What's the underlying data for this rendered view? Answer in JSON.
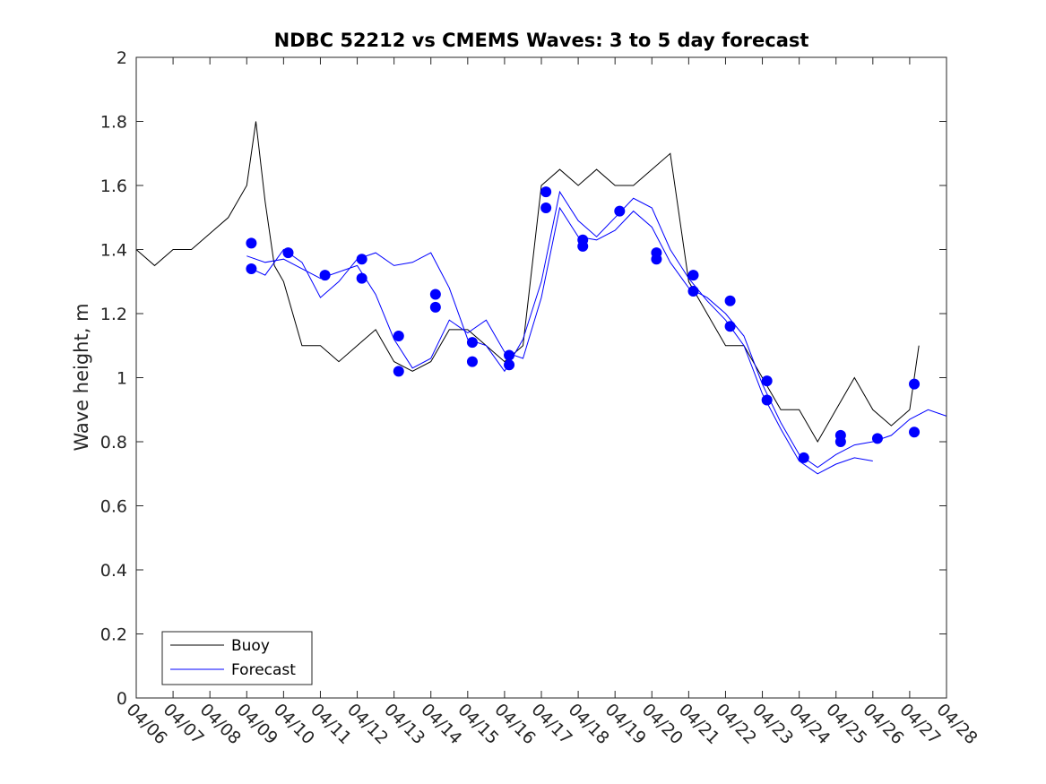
{
  "chart_data": {
    "type": "line",
    "title": "NDBC 52212 vs CMEMS Waves: 3 to 5 day forecast",
    "xlabel": "",
    "ylabel": "Wave height, m",
    "xlim": [
      "04/06",
      "04/28"
    ],
    "ylim": [
      0,
      2
    ],
    "x_tick_labels": [
      "04/06",
      "04/07",
      "04/08",
      "04/09",
      "04/10",
      "04/11",
      "04/12",
      "04/13",
      "04/14",
      "04/15",
      "04/16",
      "04/17",
      "04/18",
      "04/19",
      "04/20",
      "04/21",
      "04/22",
      "04/23",
      "04/24",
      "04/25",
      "04/26",
      "04/27",
      "04/28"
    ],
    "y_tick_labels": [
      "0",
      "0.2",
      "0.4",
      "0.6",
      "0.8",
      "1",
      "1.2",
      "1.4",
      "1.6",
      "1.8",
      "2"
    ],
    "grid": false,
    "legend": {
      "position": "bottom-left",
      "entries": [
        "Buoy",
        "Forecast"
      ]
    },
    "colors": {
      "buoy": "#000000",
      "forecast": "#0000ff",
      "axes": "#262626"
    },
    "series": [
      {
        "name": "Buoy",
        "x": [
          "04/06",
          "04/06 12:00",
          "04/07",
          "04/07 12:00",
          "04/08",
          "04/08 12:00",
          "04/09",
          "04/09 06:00",
          "04/09 12:00",
          "04/09 18:00",
          "04/10",
          "04/10 12:00",
          "04/11",
          "04/11 12:00",
          "04/12",
          "04/12 12:00",
          "04/13",
          "04/13 12:00",
          "04/14",
          "04/14 12:00",
          "04/15",
          "04/15 12:00",
          "04/16",
          "04/16 12:00",
          "04/17",
          "04/17 12:00",
          "04/18",
          "04/18 12:00",
          "04/19",
          "04/19 12:00",
          "04/20",
          "04/20 12:00",
          "04/21",
          "04/21 12:00",
          "04/22",
          "04/22 12:00",
          "04/23",
          "04/23 12:00",
          "04/24",
          "04/24 12:00",
          "04/25",
          "04/25 12:00",
          "04/26",
          "04/26 12:00",
          "04/27",
          "04/27 06:00"
        ],
        "values": [
          1.4,
          1.35,
          1.4,
          1.4,
          1.45,
          1.5,
          1.6,
          1.8,
          1.55,
          1.35,
          1.3,
          1.1,
          1.1,
          1.05,
          1.1,
          1.15,
          1.05,
          1.02,
          1.05,
          1.15,
          1.15,
          1.1,
          1.05,
          1.1,
          1.6,
          1.65,
          1.6,
          1.65,
          1.6,
          1.6,
          1.65,
          1.7,
          1.3,
          1.2,
          1.1,
          1.1,
          1.0,
          0.9,
          0.9,
          0.8,
          0.9,
          1.0,
          0.9,
          0.85,
          0.9,
          1.1
        ]
      },
      {
        "name": "Forecast",
        "x": [
          "04/09",
          "04/09 12:00",
          "04/10",
          "04/10 12:00",
          "04/11",
          "04/11 12:00",
          "04/12",
          "04/12 12:00",
          "04/13",
          "04/13 12:00",
          "04/14",
          "04/14 12:00",
          "04/15",
          "04/15 12:00",
          "04/16",
          "04/16 12:00",
          "04/17",
          "04/17 12:00",
          "04/18",
          "04/18 12:00",
          "04/19",
          "04/19 12:00",
          "04/20",
          "04/20 12:00",
          "04/21",
          "04/21 12:00",
          "04/22",
          "04/22 12:00",
          "04/23",
          "04/23 12:00",
          "04/24",
          "04/24 12:00",
          "04/25",
          "04/25 12:00",
          "04/26",
          "04/26 12:00",
          "04/27",
          "04/27 12:00",
          "04/28"
        ],
        "values": [
          1.38,
          1.36,
          1.37,
          1.34,
          1.31,
          1.33,
          1.35,
          1.26,
          1.12,
          1.03,
          1.06,
          1.18,
          1.14,
          1.18,
          1.08,
          1.06,
          1.25,
          1.53,
          1.44,
          1.43,
          1.46,
          1.52,
          1.47,
          1.36,
          1.28,
          1.25,
          1.2,
          1.13,
          0.98,
          0.86,
          0.76,
          0.72,
          0.76,
          0.79,
          0.8,
          0.82,
          0.87,
          0.9,
          0.88
        ]
      },
      {
        "name": "",
        "x": [
          "04/09 03:00",
          "04/09 12:00",
          "04/10",
          "04/10 12:00",
          "04/11",
          "04/11 12:00",
          "04/12",
          "04/12 12:00",
          "04/13",
          "04/13 12:00",
          "04/14",
          "04/14 12:00",
          "04/15",
          "04/15 12:00",
          "04/16",
          "04/16 12:00",
          "04/17",
          "04/17 12:00",
          "04/18",
          "04/18 12:00",
          "04/19",
          "04/19 12:00",
          "04/20",
          "04/20 12:00",
          "04/21",
          "04/21 12:00",
          "04/22",
          "04/22 12:00",
          "04/23",
          "04/23 12:00",
          "04/24",
          "04/24 12:00",
          "04/25",
          "04/25 12:00",
          "04/26"
        ],
        "values": [
          1.34,
          1.32,
          1.4,
          1.36,
          1.25,
          1.3,
          1.37,
          1.39,
          1.35,
          1.36,
          1.39,
          1.28,
          1.12,
          1.1,
          1.02,
          1.12,
          1.3,
          1.58,
          1.49,
          1.44,
          1.5,
          1.56,
          1.53,
          1.4,
          1.31,
          1.24,
          1.18,
          1.1,
          0.95,
          0.84,
          0.74,
          0.7,
          0.73,
          0.75,
          0.74
        ]
      }
    ],
    "markers": {
      "x": [
        "04/09 03:00",
        "04/09 03:00",
        "04/10 03:00",
        "04/11 03:00",
        "04/12 03:00",
        "04/12 03:00",
        "04/13 03:00",
        "04/13 03:00",
        "04/14 03:00",
        "04/14 03:00",
        "04/15 03:00",
        "04/15 03:00",
        "04/16 03:00",
        "04/16 03:00",
        "04/17 03:00",
        "04/17 03:00",
        "04/18 03:00",
        "04/18 03:00",
        "04/19 03:00",
        "04/20 03:00",
        "04/20 03:00",
        "04/21 03:00",
        "04/21 03:00",
        "04/22 03:00",
        "04/22 03:00",
        "04/23 03:00",
        "04/23 03:00",
        "04/24 03:00",
        "04/25 03:00",
        "04/25 03:00",
        "04/26 03:00",
        "04/27 03:00",
        "04/27 03:00"
      ],
      "values": [
        1.42,
        1.34,
        1.39,
        1.32,
        1.37,
        1.31,
        1.13,
        1.02,
        1.26,
        1.22,
        1.11,
        1.05,
        1.07,
        1.04,
        1.58,
        1.53,
        1.43,
        1.41,
        1.52,
        1.39,
        1.37,
        1.32,
        1.27,
        1.24,
        1.16,
        0.99,
        0.93,
        0.75,
        0.82,
        0.8,
        0.81,
        0.98,
        0.83
      ]
    }
  }
}
